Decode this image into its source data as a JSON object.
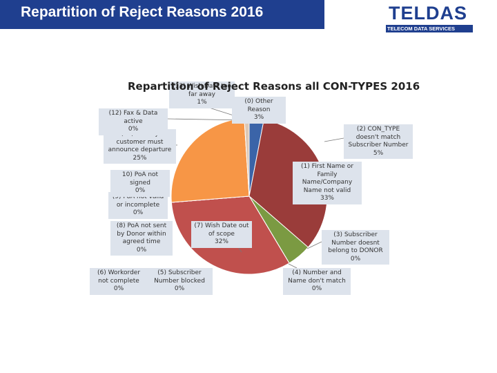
{
  "header": {
    "title": "Repartition of Reject Reasons 2016",
    "logo": "TELDAS",
    "logo_subtitle": "TELECOM DATA SERVICES"
  },
  "chart_data": {
    "type": "pie",
    "title": "Repartition of Reject Reasons all CON-TYPES 2016",
    "categories": [
      "(0) Other Reason",
      "(1) First Name or Family Name/Company Name not valid",
      "(2) CON_TYPE doesn't match Subscriber Number",
      "(3) Subscriber Number doesnt belong to DONOR",
      "(4) Number and Name don't match",
      "(5) Subscriber Number blocked",
      "(6) Workorder not complete",
      "(7) Wish Date out of scope",
      "(8) PoA not sent by Donor within agreed time",
      "(9) PoA not valid or incomplete",
      "10) PoA not signed",
      "(11) Pre-Pay customer must announce departure",
      "(12) Fax & Data active",
      "(13) Wish Date too far away"
    ],
    "values": [
      3,
      33,
      5,
      0,
      0,
      0,
      0,
      32,
      0,
      0,
      0,
      25,
      0,
      1
    ],
    "value_labels": [
      "3%",
      "33%",
      "5%",
      "0%",
      "0%",
      "0%",
      "0%",
      "32%",
      "0%",
      "0%",
      "0%",
      "25%",
      "0%",
      "1%"
    ],
    "colors": [
      "#3b64a8",
      "#9a3c3a",
      "#7b9a42",
      "#6a4c8c",
      "#3a9ab0",
      "#e8883c",
      "#4a6fb0",
      "#c0504d",
      "#9bbb59",
      "#8064a2",
      "#4bacc6",
      "#f79646",
      "#a9b7d6",
      "#ddc8b6"
    ]
  }
}
